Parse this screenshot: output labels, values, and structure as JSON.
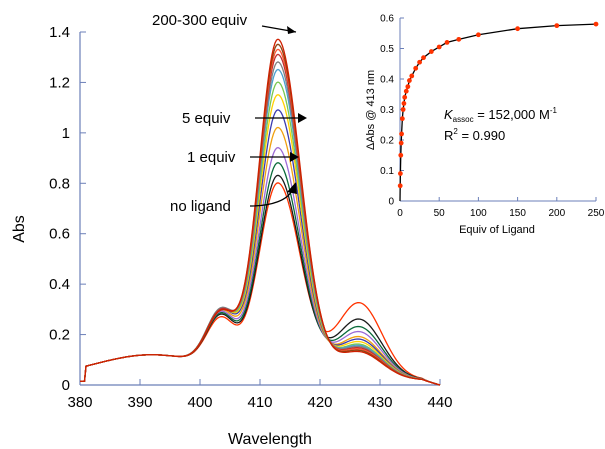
{
  "chart_data": [
    {
      "type": "line",
      "xlabel": "Wavelength",
      "ylabel": "Abs",
      "xlim": [
        380,
        440
      ],
      "ylim": [
        0,
        1.4
      ],
      "xticks": [
        "380",
        "390",
        "400",
        "410",
        "420",
        "430",
        "440"
      ],
      "yticks": [
        "0",
        "0.2",
        "0.4",
        "0.6",
        "0.8",
        "1",
        "1.2",
        "1.4"
      ],
      "grid": false,
      "annotations": [
        "200-300 equiv",
        "5 equiv",
        "1 equiv",
        "no ligand"
      ],
      "series": [
        {
          "color": "#ff3300",
          "peak": 0.83,
          "shoulder403": 0.27,
          "band426": 0.305
        },
        {
          "color": "#1a1a1a",
          "peak": 0.86,
          "shoulder403": 0.28,
          "band426": 0.24
        },
        {
          "color": "#0a6b3a",
          "peak": 0.91,
          "shoulder403": 0.285,
          "band426": 0.21
        },
        {
          "color": "#9b6ad6",
          "peak": 0.97,
          "shoulder403": 0.29,
          "band426": 0.19
        },
        {
          "color": "#f0a010",
          "peak": 1.05,
          "shoulder403": 0.295,
          "band426": 0.17
        },
        {
          "color": "#3b3bb0",
          "peak": 1.12,
          "shoulder403": 0.3,
          "band426": 0.16
        },
        {
          "color": "#ffd000",
          "peak": 1.18,
          "shoulder403": 0.3,
          "band426": 0.15
        },
        {
          "color": "#78c850",
          "peak": 1.23,
          "shoulder403": 0.3,
          "band426": 0.14
        },
        {
          "color": "#4aa0d0",
          "peak": 1.28,
          "shoulder403": 0.3,
          "band426": 0.135
        },
        {
          "color": "#808080",
          "peak": 1.31,
          "shoulder403": 0.3,
          "band426": 0.13
        },
        {
          "color": "#c03030",
          "peak": 1.34,
          "shoulder403": 0.295,
          "band426": 0.125
        },
        {
          "color": "#ff5533",
          "peak": 1.36,
          "shoulder403": 0.29,
          "band426": 0.12
        },
        {
          "color": "#8b4513",
          "peak": 1.38,
          "shoulder403": 0.29,
          "band426": 0.115
        },
        {
          "color": "#d02000",
          "peak": 1.4,
          "shoulder403": 0.29,
          "band426": 0.11
        }
      ]
    },
    {
      "type": "scatter",
      "xlabel": "Equiv of Ligand",
      "ylabel": "ΔAbs @ 413 nm",
      "xlim": [
        0,
        250
      ],
      "ylim": [
        0,
        0.6
      ],
      "xticks": [
        "0",
        "50",
        "100",
        "150",
        "200",
        "250"
      ],
      "yticks": [
        "0",
        "0.1",
        "0.2",
        "0.3",
        "0.4",
        "0.5",
        "0.6"
      ],
      "x": [
        0.25,
        0.5,
        1,
        1.5,
        2,
        3,
        4,
        5,
        6,
        8,
        10,
        12,
        15,
        20,
        25,
        30,
        40,
        50,
        60,
        75,
        100,
        150,
        200,
        250
      ],
      "y": [
        0.05,
        0.09,
        0.15,
        0.19,
        0.22,
        0.27,
        0.3,
        0.32,
        0.34,
        0.36,
        0.375,
        0.395,
        0.41,
        0.435,
        0.455,
        0.47,
        0.49,
        0.505,
        0.52,
        0.53,
        0.545,
        0.565,
        0.575,
        0.58
      ],
      "marker_color": "#ff3300",
      "fit_color": "#000000",
      "annotation": {
        "k_symbol": "K",
        "k_subscript": "assoc",
        "k_value": " = 152,000 M",
        "k_unit_sup": "-1",
        "r2_label": "R",
        "r2_sup": "2",
        "r2_value": " = 0.990"
      }
    }
  ]
}
